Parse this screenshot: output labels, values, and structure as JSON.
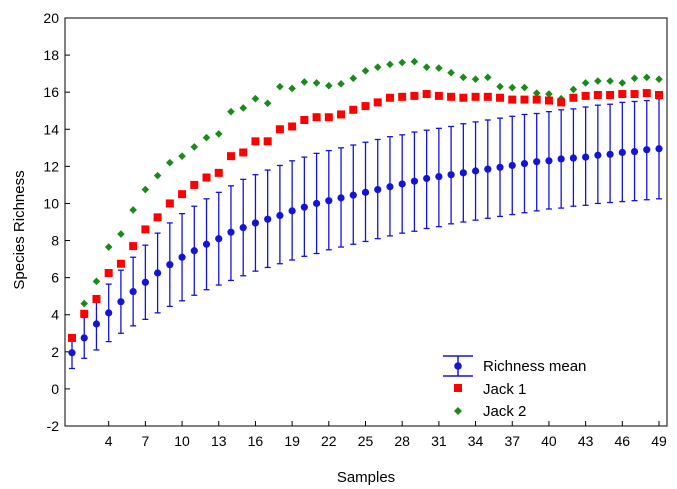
{
  "chart_data": {
    "type": "scatter",
    "title": "",
    "xlabel": "Samples",
    "ylabel": "Species Richness",
    "xlim": [
      1,
      49
    ],
    "ylim": [
      -2,
      20
    ],
    "x_ticks": [
      4,
      7,
      10,
      13,
      16,
      19,
      22,
      25,
      28,
      31,
      34,
      37,
      40,
      43,
      46,
      49
    ],
    "y_ticks": [
      -2,
      0,
      2,
      4,
      6,
      8,
      10,
      12,
      14,
      16,
      18,
      20
    ],
    "grid": false,
    "legend_position": "bottom-right",
    "x": [
      1,
      2,
      3,
      4,
      5,
      6,
      7,
      8,
      9,
      10,
      11,
      12,
      13,
      14,
      15,
      16,
      17,
      18,
      19,
      20,
      21,
      22,
      23,
      24,
      25,
      26,
      27,
      28,
      29,
      30,
      31,
      32,
      33,
      34,
      35,
      36,
      37,
      38,
      39,
      40,
      41,
      42,
      43,
      44,
      45,
      46,
      47,
      48,
      49
    ],
    "series": [
      {
        "name": "Richness mean",
        "color": "#1414d8",
        "marker": "circle-with-errorbar",
        "values": [
          1.95,
          2.75,
          3.5,
          4.1,
          4.7,
          5.25,
          5.75,
          6.25,
          6.7,
          7.1,
          7.45,
          7.8,
          8.1,
          8.45,
          8.7,
          8.95,
          9.15,
          9.35,
          9.6,
          9.8,
          10.0,
          10.15,
          10.3,
          10.45,
          10.6,
          10.75,
          10.9,
          11.05,
          11.2,
          11.35,
          11.45,
          11.55,
          11.65,
          11.75,
          11.85,
          11.95,
          12.05,
          12.15,
          12.25,
          12.3,
          12.4,
          12.45,
          12.5,
          12.6,
          12.65,
          12.75,
          12.8,
          12.9,
          12.95
        ],
        "lower": [
          1.1,
          1.65,
          2.1,
          2.55,
          3.0,
          3.4,
          3.75,
          4.1,
          4.45,
          4.75,
          5.05,
          5.35,
          5.6,
          5.85,
          6.1,
          6.35,
          6.55,
          6.75,
          6.95,
          7.15,
          7.3,
          7.5,
          7.65,
          7.8,
          7.95,
          8.1,
          8.25,
          8.4,
          8.5,
          8.65,
          8.75,
          8.9,
          9.0,
          9.1,
          9.2,
          9.3,
          9.4,
          9.5,
          9.6,
          9.7,
          9.75,
          9.85,
          9.9,
          10.0,
          10.05,
          10.1,
          10.15,
          10.2,
          10.25
        ],
        "upper": [
          2.8,
          3.85,
          4.9,
          5.65,
          6.4,
          7.1,
          7.75,
          8.4,
          8.95,
          9.45,
          9.85,
          10.25,
          10.6,
          10.95,
          11.3,
          11.55,
          11.8,
          12.05,
          12.3,
          12.5,
          12.7,
          12.85,
          13.0,
          13.15,
          13.3,
          13.45,
          13.6,
          13.7,
          13.85,
          13.95,
          14.05,
          14.15,
          14.3,
          14.4,
          14.5,
          14.6,
          14.7,
          14.8,
          14.85,
          14.95,
          15.05,
          15.1,
          15.2,
          15.3,
          15.35,
          15.45,
          15.5,
          15.55,
          15.65
        ]
      },
      {
        "name": "Jack 1",
        "color": "#ff0000",
        "marker": "square",
        "values": [
          2.75,
          4.05,
          4.85,
          6.25,
          6.75,
          7.7,
          8.6,
          9.25,
          10.0,
          10.5,
          11.0,
          11.4,
          11.65,
          12.55,
          12.75,
          13.35,
          13.35,
          14.0,
          14.15,
          14.5,
          14.65,
          14.65,
          14.8,
          15.05,
          15.25,
          15.45,
          15.7,
          15.75,
          15.8,
          15.9,
          15.8,
          15.75,
          15.7,
          15.75,
          15.75,
          15.7,
          15.6,
          15.6,
          15.6,
          15.55,
          15.45,
          15.7,
          15.8,
          15.85,
          15.85,
          15.9,
          15.9,
          15.95,
          15.85
        ]
      },
      {
        "name": "Jack 2",
        "color": "#1a8a1a",
        "marker": "diamond",
        "values": [
          2.75,
          4.6,
          5.8,
          7.65,
          8.35,
          9.65,
          10.75,
          11.5,
          12.2,
          12.55,
          13.05,
          13.55,
          13.75,
          14.95,
          15.15,
          15.65,
          15.4,
          16.3,
          16.2,
          16.55,
          16.5,
          16.35,
          16.45,
          16.75,
          17.15,
          17.35,
          17.5,
          17.6,
          17.65,
          17.35,
          17.3,
          17.05,
          16.8,
          16.7,
          16.8,
          16.3,
          16.25,
          16.25,
          15.95,
          15.9,
          15.65,
          16.15,
          16.5,
          16.6,
          16.6,
          16.5,
          16.75,
          16.8,
          16.7
        ]
      }
    ]
  }
}
